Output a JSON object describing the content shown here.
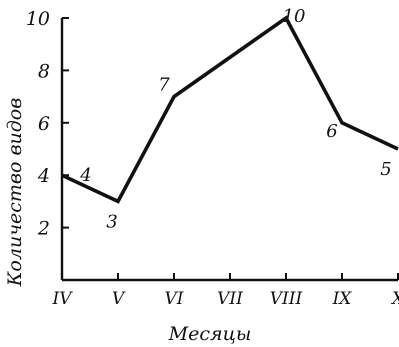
{
  "chart_data": {
    "type": "line",
    "categories": [
      "IV",
      "V",
      "VI",
      "VII",
      "VIII",
      "IX",
      "X"
    ],
    "series": [
      {
        "x": [
          "IV",
          "V",
          "VI",
          "VIII",
          "IX",
          "X"
        ],
        "values": [
          4,
          3,
          7,
          10,
          6,
          5
        ]
      }
    ],
    "data_labels": [
      "4",
      "3",
      "7",
      "10",
      "6",
      "5"
    ],
    "ytick_labels": [
      "2",
      "4",
      "6",
      "8",
      "10"
    ],
    "xlabel": "Месяцы",
    "ylabel": "Количество видов",
    "ylim": [
      0,
      10
    ],
    "grid": false,
    "legend": "none"
  }
}
